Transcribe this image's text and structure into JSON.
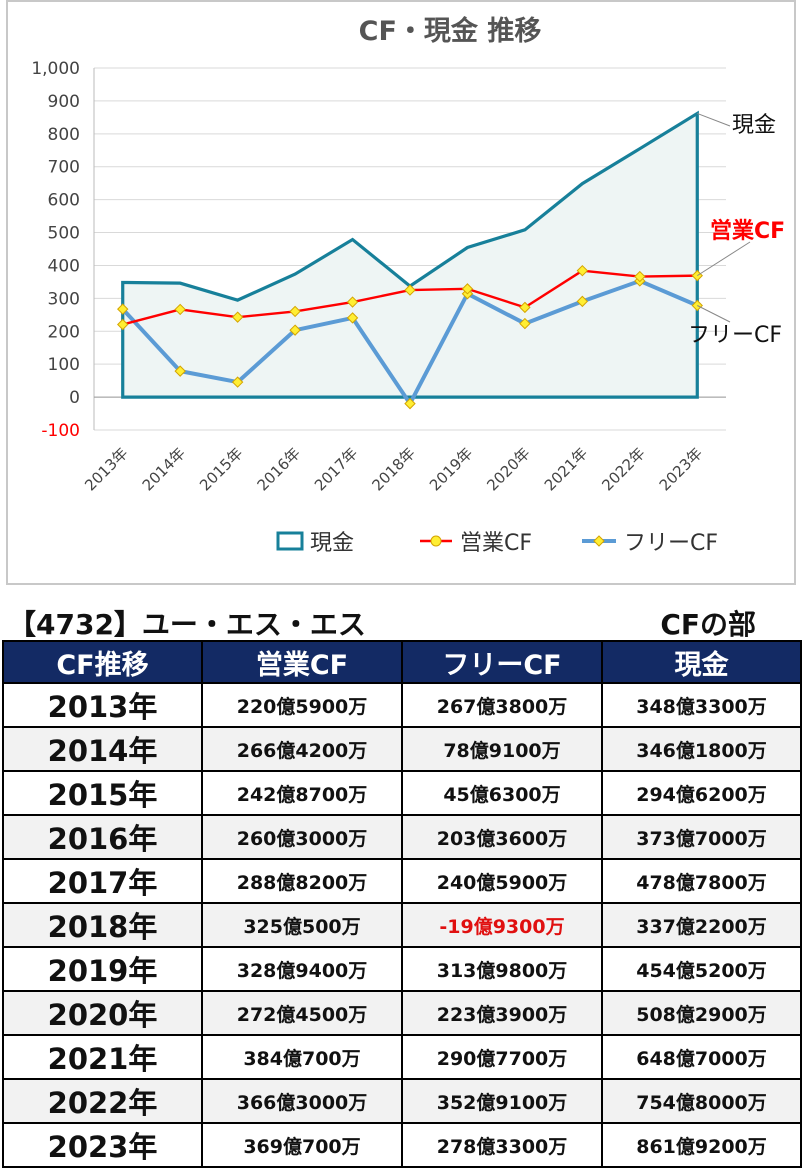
{
  "chart_data": {
    "type": "line",
    "title": "CF・現金 推移",
    "categories": [
      "2013年",
      "2014年",
      "2015年",
      "2016年",
      "2017年",
      "2018年",
      "2019年",
      "2020年",
      "2021年",
      "2022年",
      "2023年"
    ],
    "yticks": [
      "1,000",
      "900",
      "800",
      "700",
      "600",
      "500",
      "400",
      "300",
      "200",
      "100",
      "0",
      "-100"
    ],
    "ylim": [
      -100,
      1000
    ],
    "grid": true,
    "legend_position": "bottom",
    "series": [
      {
        "name": "現金",
        "style": "area",
        "color": "#17809a",
        "values": [
          348.3,
          346.2,
          294.6,
          373.7,
          478.8,
          337.2,
          454.5,
          508.3,
          648.7,
          754.8,
          861.9
        ]
      },
      {
        "name": "営業CF",
        "style": "line-marker",
        "color": "#ff0000",
        "values": [
          220.6,
          266.4,
          242.9,
          260.3,
          288.8,
          325.1,
          328.9,
          272.5,
          384.1,
          366.3,
          369.1
        ]
      },
      {
        "name": "フリーCF",
        "style": "line-marker",
        "color": "#5b9bd5",
        "values": [
          267.4,
          78.9,
          45.6,
          203.4,
          240.6,
          -19.9,
          314.0,
          223.4,
          290.8,
          352.9,
          278.3
        ]
      }
    ],
    "annotations": [
      {
        "text": "現金",
        "color": "#111111"
      },
      {
        "text": "営業CF",
        "color": "#ff0000"
      },
      {
        "text": "フリーCF",
        "color": "#111111"
      }
    ]
  },
  "table": {
    "company": "【4732】ユー・エス・エス",
    "section": "CFの部",
    "headers": [
      "CF推移",
      "営業CF",
      "フリーCF",
      "現金"
    ],
    "rows": [
      {
        "year": "2013年",
        "op": "220億5900万",
        "free": "267億3800万",
        "cash": "348億3300万"
      },
      {
        "year": "2014年",
        "op": "266億4200万",
        "free": "78億9100万",
        "cash": "346億1800万"
      },
      {
        "year": "2015年",
        "op": "242億8700万",
        "free": "45億6300万",
        "cash": "294億6200万"
      },
      {
        "year": "2016年",
        "op": "260億3000万",
        "free": "203億3600万",
        "cash": "373億7000万"
      },
      {
        "year": "2017年",
        "op": "288億8200万",
        "free": "240億5900万",
        "cash": "478億7800万"
      },
      {
        "year": "2018年",
        "op": "325億500万",
        "free": "-19億9300万",
        "cash": "337億2200万"
      },
      {
        "year": "2019年",
        "op": "328億9400万",
        "free": "313億9800万",
        "cash": "454億5200万"
      },
      {
        "year": "2020年",
        "op": "272億4500万",
        "free": "223億3900万",
        "cash": "508億2900万"
      },
      {
        "year": "2021年",
        "op": "384億700万",
        "free": "290億7700万",
        "cash": "648億7000万"
      },
      {
        "year": "2022年",
        "op": "366億3000万",
        "free": "352億9100万",
        "cash": "754億8000万"
      },
      {
        "year": "2023年",
        "op": "369億700万",
        "free": "278億3300万",
        "cash": "861億9200万"
      }
    ]
  }
}
